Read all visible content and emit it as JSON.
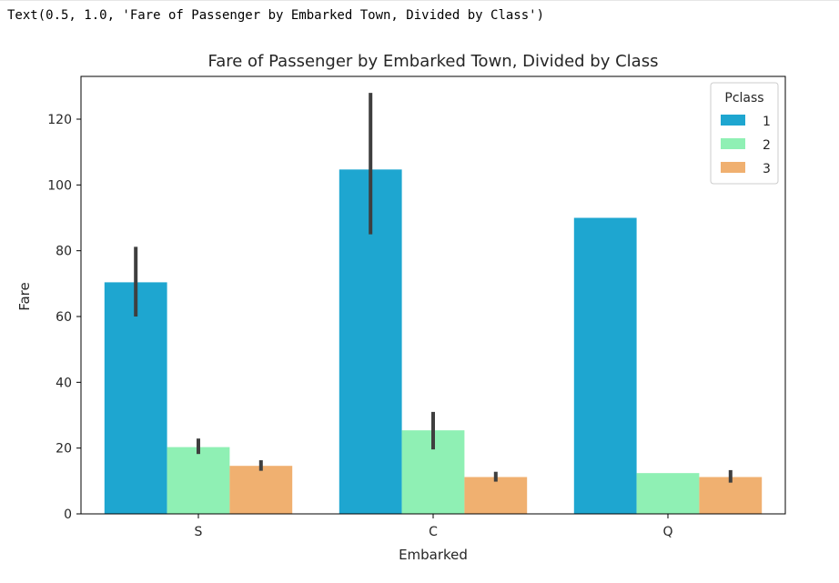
{
  "output_text": "Text(0.5, 1.0, 'Fare of Passenger by Embarked Town, Divided by Class')",
  "chart_data": {
    "type": "bar",
    "title": "Fare of Passenger by Embarked Town, Divided by Class",
    "xlabel": "Embarked",
    "ylabel": "Fare",
    "categories": [
      "S",
      "C",
      "Q"
    ],
    "ylim": [
      0,
      133
    ],
    "yticks": [
      0,
      20,
      40,
      60,
      80,
      100,
      120
    ],
    "grid": false,
    "legend": {
      "title": "Pclass",
      "placement": "top-right"
    },
    "series": [
      {
        "name": "1",
        "color": "#1ea6d0",
        "values": [
          70.4,
          104.7,
          90.0
        ],
        "errors": [
          [
            60.0,
            81.2
          ],
          [
            85.0,
            128.0
          ],
          null
        ]
      },
      {
        "name": "2",
        "color": "#8ff0b4",
        "values": [
          20.3,
          25.4,
          12.4
        ],
        "errors": [
          [
            18.2,
            22.9
          ],
          [
            19.6,
            31.0
          ],
          null
        ]
      },
      {
        "name": "3",
        "color": "#f0b070",
        "values": [
          14.6,
          11.2,
          11.2
        ],
        "errors": [
          [
            13.1,
            16.3
          ],
          [
            9.8,
            12.8
          ],
          [
            9.5,
            13.3
          ]
        ]
      }
    ],
    "error_bar_color": "#3f3f3f"
  }
}
